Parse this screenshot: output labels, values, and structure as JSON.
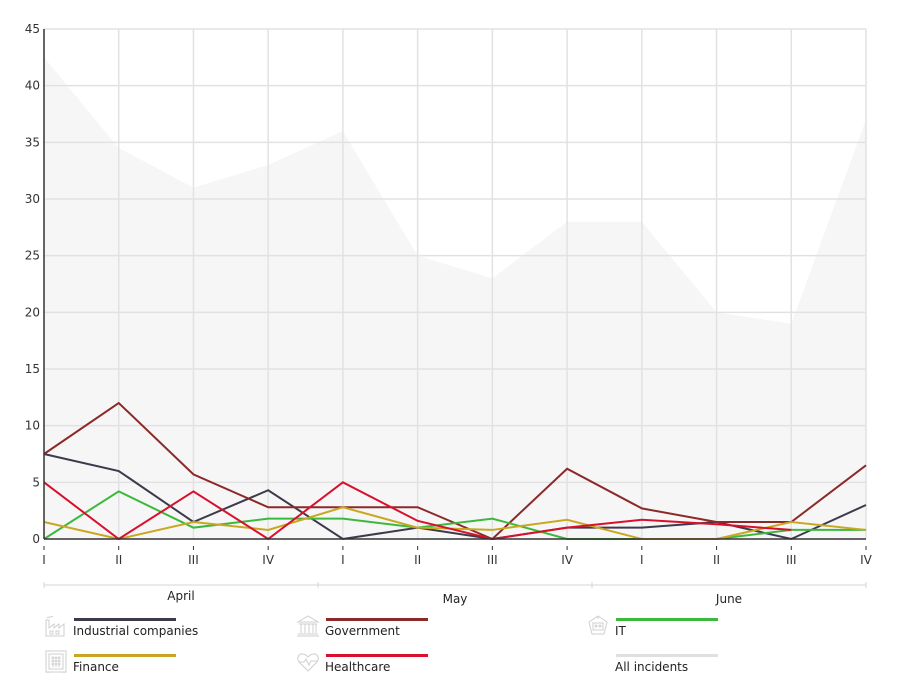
{
  "chart_data": {
    "type": "line",
    "title": "",
    "xlabel": "",
    "ylabel": "",
    "ylim": [
      0,
      45
    ],
    "y_ticks": [
      0,
      5,
      10,
      15,
      20,
      25,
      30,
      35,
      40,
      45
    ],
    "grid": true,
    "x": [
      "I",
      "II",
      "III",
      "IV",
      "I",
      "II",
      "III",
      "IV",
      "I",
      "II",
      "III",
      "IV"
    ],
    "months": [
      {
        "label": "April",
        "weeks": 4
      },
      {
        "label": "May",
        "weeks": 4
      },
      {
        "label": "June",
        "weeks": 4
      }
    ],
    "area_series": {
      "name": "All incidents",
      "color": "#e0e0e0",
      "fill": "#f6f6f7",
      "values": [
        42.5,
        34.5,
        31,
        33,
        36,
        25,
        23,
        28,
        28,
        20,
        19,
        37
      ]
    },
    "series": [
      {
        "name": "Industrial companies",
        "color": "#3d3a4b",
        "icon": "factory-icon",
        "values": [
          7.5,
          6,
          1.5,
          4.3,
          0,
          1,
          0,
          1,
          1,
          1.5,
          0,
          3
        ]
      },
      {
        "name": "Government",
        "color": "#8b2a28",
        "icon": "government-building-icon",
        "values": [
          7.5,
          12,
          5.7,
          2.8,
          2.8,
          2.8,
          0,
          6.2,
          2.7,
          1.5,
          1.5,
          6.5
        ]
      },
      {
        "name": "IT",
        "color": "#3cb93c",
        "icon": "robot-icon",
        "values": [
          0,
          4.2,
          1,
          1.8,
          1.8,
          1,
          1.8,
          0,
          0,
          0,
          0.8,
          0.8
        ]
      },
      {
        "name": "Finance",
        "color": "#c8a822",
        "icon": "safe-icon",
        "values": [
          1.5,
          0,
          1.5,
          0.8,
          2.8,
          1,
          0.8,
          1.7,
          0,
          0,
          1.5,
          0.8
        ]
      },
      {
        "name": "Healthcare",
        "color": "#d9102c",
        "icon": "heartbeat-icon",
        "values": [
          5,
          0,
          4.2,
          0,
          5,
          1.6,
          0,
          1,
          1.7,
          1.3,
          0.8,
          null
        ]
      }
    ],
    "legend": {
      "placement": "bottom",
      "items": [
        {
          "label": "Industrial companies",
          "color": "#3d3a4b",
          "icon": "factory-icon"
        },
        {
          "label": "Government",
          "color": "#8b2a28",
          "icon": "government-building-icon"
        },
        {
          "label": "IT",
          "color": "#3cb93c",
          "icon": "robot-icon"
        },
        {
          "label": "Finance",
          "color": "#c8a822",
          "icon": "safe-icon"
        },
        {
          "label": "Healthcare",
          "color": "#d9102c",
          "icon": "heartbeat-icon"
        },
        {
          "label": "All incidents",
          "color": "#e0e0e0",
          "icon": ""
        }
      ]
    }
  }
}
